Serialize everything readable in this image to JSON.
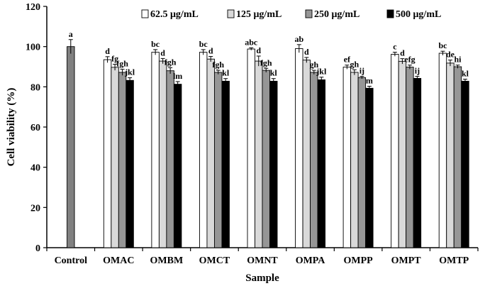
{
  "chart_data": {
    "type": "bar",
    "title": "",
    "xlabel": "Sample",
    "ylabel": "Cell viability (%)",
    "ylim": [
      0,
      120
    ],
    "yticks": [
      0,
      20,
      40,
      60,
      80,
      100,
      120
    ],
    "grid": false,
    "legend_position": "top-right",
    "colors": [
      "#ffffff",
      "#d9d9d9",
      "#969696",
      "#000000"
    ],
    "control": {
      "name": "Control",
      "value": 100,
      "error": 3.5,
      "label": "a",
      "color": "#808080"
    },
    "categories": [
      "OMAC",
      "OMBM",
      "OMCT",
      "OMNT",
      "OMPA",
      "OMPP",
      "OMPT",
      "OMTP"
    ],
    "series": [
      {
        "name": "62.5 μg/mL",
        "values": [
          93.5,
          97.2,
          97.2,
          98.8,
          99.0,
          89.8,
          96.2,
          96.7
        ],
        "errors": [
          1.5,
          1.3,
          1.3,
          0.6,
          2.0,
          1.0,
          1.0,
          1.0
        ],
        "labels": [
          "d",
          "bc",
          "bc",
          "abc",
          "ab",
          "ef",
          "c",
          "bc"
        ]
      },
      {
        "name": "125 μg/mL",
        "values": [
          89.7,
          92.8,
          93.8,
          92.8,
          93.3,
          87.2,
          92.7,
          91.8
        ],
        "errors": [
          1.5,
          1.3,
          1.3,
          2.5,
          1.3,
          1.3,
          1.3,
          1.5
        ],
        "labels": [
          "fg",
          "d",
          "d",
          "d",
          "d",
          "gh",
          "d",
          "de"
        ]
      },
      {
        "name": "250 μg/mL",
        "values": [
          87.2,
          88.0,
          87.2,
          88.2,
          87.2,
          84.6,
          89.8,
          90.0
        ],
        "errors": [
          1.5,
          1.5,
          1.0,
          1.0,
          1.0,
          0.6,
          1.0,
          0.8
        ],
        "labels": [
          "fgh",
          "fgh",
          "fgh",
          "fgh",
          "gh",
          "ij",
          "efg",
          "hi"
        ]
      },
      {
        "name": "500 μg/mL",
        "values": [
          83.2,
          81.3,
          82.8,
          82.8,
          83.5,
          79.3,
          84.2,
          82.8
        ],
        "errors": [
          1.3,
          1.3,
          1.3,
          1.3,
          1.3,
          1.0,
          1.0,
          1.0
        ],
        "labels": [
          "jkl",
          "lm",
          "kl",
          "kl",
          "jkl",
          "m",
          "ij",
          "kl"
        ]
      }
    ]
  }
}
